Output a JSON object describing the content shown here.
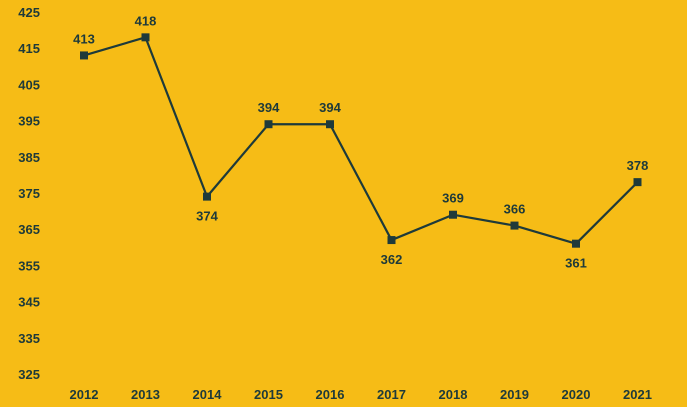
{
  "colors": {
    "background": "#F6BC16",
    "line": "#1E3A3A",
    "marker": "#1E3A3A",
    "text": "#1E3A3A"
  },
  "chart_data": {
    "type": "line",
    "title": "",
    "xlabel": "",
    "ylabel": "",
    "categories": [
      "2012",
      "2013",
      "2014",
      "2015",
      "2016",
      "2017",
      "2018",
      "2019",
      "2020",
      "2021"
    ],
    "series": [
      {
        "values": [
          413,
          418,
          374,
          394,
          394,
          362,
          369,
          366,
          361,
          378
        ],
        "marker": "square"
      }
    ],
    "ylim": [
      325,
      425
    ],
    "yticks": [
      325,
      335,
      345,
      355,
      365,
      375,
      385,
      395,
      405,
      415,
      425
    ],
    "grid": false,
    "legend": "none",
    "data_labels": [
      "413",
      "418",
      "374",
      "394",
      "394",
      "362",
      "369",
      "366",
      "361",
      "378"
    ]
  }
}
